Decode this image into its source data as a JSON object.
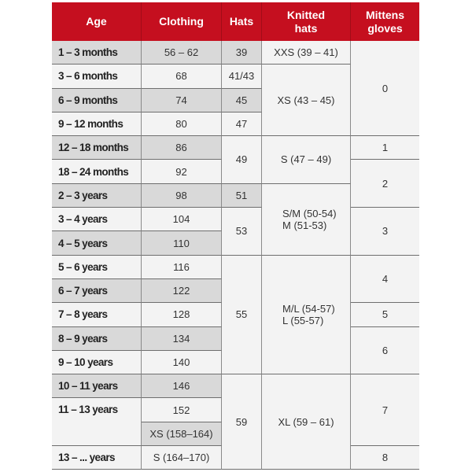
{
  "header": [
    "Age",
    "Clothing",
    "Hats",
    "Knitted\nhats",
    "Mittens\ngloves"
  ],
  "age": [
    "1 – 3 months",
    "3 – 6 months",
    "6 – 9 months",
    "9 – 12 months",
    "12 – 18 months",
    "18 – 24 months",
    "2 – 3 years",
    "3 – 4 years",
    "4 – 5 years",
    "5 – 6 years",
    "6 – 7 years",
    "7 – 8 years",
    "8 – 9 years",
    "9 – 10 years",
    "10 – 11 years",
    "11 – 13 years",
    "13 – ... years"
  ],
  "clothing": [
    "56 – 62",
    "68",
    "74",
    "80",
    "86",
    "92",
    "98",
    "104",
    "110",
    "116",
    "122",
    "128",
    "134",
    "140",
    "146",
    "152",
    "XS (158–164)",
    "S (164–170)"
  ],
  "hats": [
    "39",
    "41/43",
    "45",
    "47",
    "49",
    "51",
    "53",
    "55",
    "59"
  ],
  "knitted": [
    "XXS (39 – 41)",
    "XS (43 – 45)",
    "S (47 – 49)",
    "S/M (50-54)\nM (51-53)",
    "M/L (54-57)\nL (55-57)",
    "XL (59 – 61)"
  ],
  "mittens": [
    "0",
    "1",
    "2",
    "3",
    "4",
    "5",
    "6",
    "7",
    "8"
  ],
  "colors": {
    "header": "#c50f1f",
    "shade": "#d9d9d9",
    "cell": "#f3f3f3"
  }
}
